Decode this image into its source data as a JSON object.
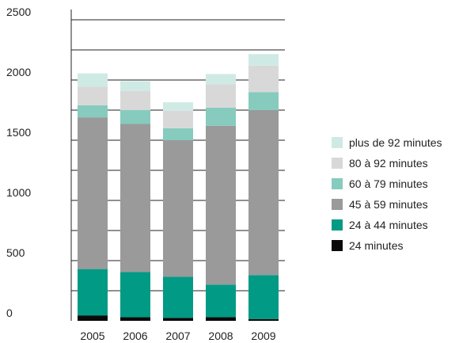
{
  "chart_data": {
    "type": "bar",
    "stacked": true,
    "title": "",
    "xlabel": "",
    "ylabel": "",
    "categories": [
      "2005",
      "2006",
      "2007",
      "2008",
      "2009"
    ],
    "ylim": [
      0,
      2500
    ],
    "y_ticks": [
      "0",
      "500",
      "1000",
      "1500",
      "2000",
      "2500"
    ],
    "grid": true,
    "legend_position": "right",
    "series": [
      {
        "name": "24 minutes",
        "color": "#0a0a0a",
        "values": [
          45,
          30,
          25,
          30,
          15
        ]
      },
      {
        "name": "24 à 44 minutes",
        "color": "#009a85",
        "values": [
          385,
          375,
          340,
          270,
          365
        ]
      },
      {
        "name": "45 à 59 minutes",
        "color": "#9a9a9a",
        "values": [
          1260,
          1230,
          1135,
          1320,
          1370
        ]
      },
      {
        "name": "60 à 79 minutes",
        "color": "#86cbbe",
        "values": [
          100,
          115,
          100,
          150,
          150
        ]
      },
      {
        "name": "80 à 92 minutes",
        "color": "#d8d8d8",
        "values": [
          155,
          160,
          145,
          195,
          220
        ]
      },
      {
        "name": "plus de 92 minutes",
        "color": "#cfeae4",
        "values": [
          110,
          80,
          70,
          85,
          95
        ]
      }
    ]
  }
}
